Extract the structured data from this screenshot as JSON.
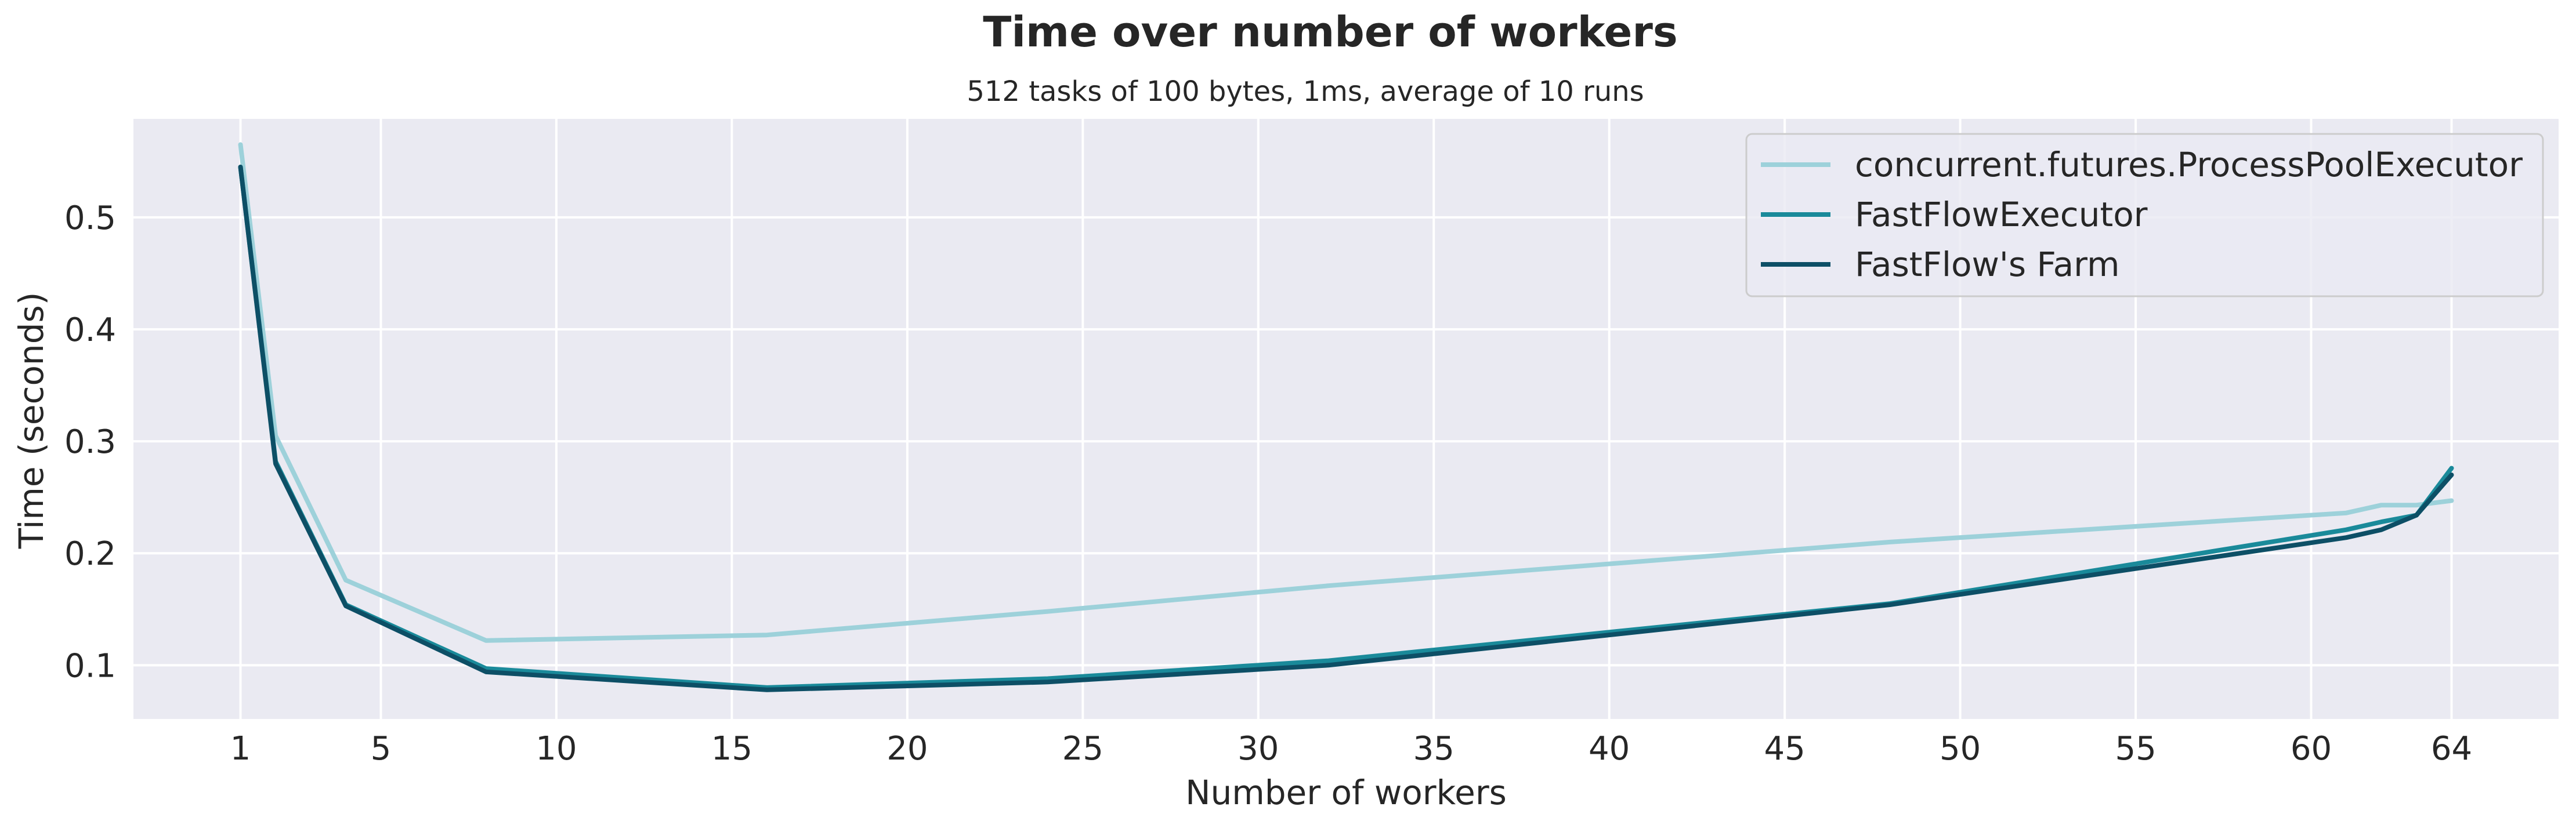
{
  "chart_data": {
    "type": "line",
    "title": "Time over number of workers",
    "subtitle": "512 tasks of 100 bytes, 1ms, average of 10 runs",
    "xlabel": "Number of workers",
    "ylabel": "Time (seconds)",
    "xlim": [
      -2.05,
      67.05
    ],
    "ylim": [
      0.052,
      0.588
    ],
    "xticks": [
      1,
      5,
      10,
      15,
      20,
      25,
      30,
      35,
      40,
      45,
      50,
      55,
      60,
      64
    ],
    "yticks": [
      0.1,
      0.2,
      0.3,
      0.4,
      0.5
    ],
    "grid": true,
    "legend_position": "top-right",
    "series": [
      {
        "name": "concurrent.futures.ProcessPoolExecutor",
        "color": "#9dd1da",
        "x": [
          1,
          2,
          4,
          8,
          16,
          24,
          32,
          48,
          61,
          62,
          63,
          64
        ],
        "y": [
          0.565,
          0.305,
          0.176,
          0.122,
          0.127,
          0.148,
          0.171,
          0.21,
          0.236,
          0.243,
          0.243,
          0.247
        ]
      },
      {
        "name": "FastFlowExecutor",
        "color": "#1a8a9a",
        "x": [
          1,
          2,
          4,
          8,
          16,
          24,
          32,
          48,
          61,
          62,
          63,
          64
        ],
        "y": [
          0.545,
          0.282,
          0.154,
          0.097,
          0.08,
          0.088,
          0.104,
          0.155,
          0.221,
          0.228,
          0.234,
          0.276
        ]
      },
      {
        "name": "FastFlow's Farm",
        "color": "#0d4f66",
        "x": [
          1,
          2,
          4,
          8,
          16,
          24,
          32,
          48,
          61,
          62,
          63,
          64
        ],
        "y": [
          0.545,
          0.28,
          0.153,
          0.094,
          0.078,
          0.085,
          0.1,
          0.154,
          0.214,
          0.221,
          0.234,
          0.27
        ]
      }
    ]
  }
}
